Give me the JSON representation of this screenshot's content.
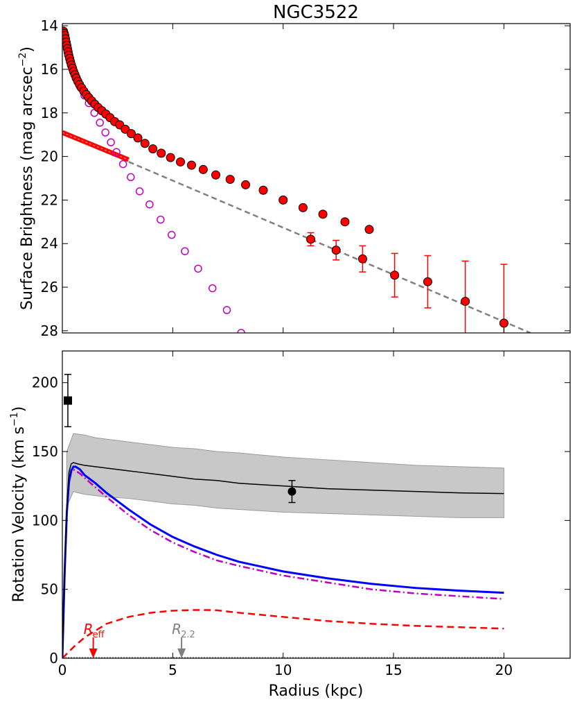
{
  "chart_data": [
    {
      "type": "scatter",
      "title": "NGC3522",
      "ylabel": "Surface Brightness (mag arcsec",
      "ylabel_exp": "−2",
      "ylabel_close": ")",
      "xlim": [
        0,
        23
      ],
      "ylim": [
        28.1,
        13.9
      ],
      "y_inverted": true,
      "yticks": [
        14,
        16,
        18,
        20,
        22,
        24,
        26,
        28
      ],
      "xticks": [
        0,
        5,
        10,
        15,
        20
      ],
      "colors": {
        "data": "#ff0000",
        "bulge": "#bf00bf",
        "fit": "#808080",
        "disk": "#ff0000"
      },
      "series": [
        {
          "name": "observed profile",
          "style": "filled-circle-errorbar",
          "points": [
            [
              0.05,
              14.25
            ],
            [
              0.08,
              14.35
            ],
            [
              0.11,
              14.45
            ],
            [
              0.14,
              14.6
            ],
            [
              0.17,
              14.75
            ],
            [
              0.2,
              14.9
            ],
            [
              0.23,
              15.05
            ],
            [
              0.26,
              15.2
            ],
            [
              0.29,
              15.35
            ],
            [
              0.33,
              15.5
            ],
            [
              0.37,
              15.65
            ],
            [
              0.41,
              15.8
            ],
            [
              0.46,
              15.95
            ],
            [
              0.51,
              16.1
            ],
            [
              0.57,
              16.25
            ],
            [
              0.63,
              16.4
            ],
            [
              0.7,
              16.55
            ],
            [
              0.78,
              16.7
            ],
            [
              0.87,
              16.85
            ],
            [
              0.97,
              17.0
            ],
            [
              1.08,
              17.15
            ],
            [
              1.2,
              17.3
            ],
            [
              1.33,
              17.45
            ],
            [
              1.47,
              17.6
            ],
            [
              1.62,
              17.75
            ],
            [
              1.79,
              17.9
            ],
            [
              1.97,
              18.05
            ],
            [
              2.16,
              18.22
            ],
            [
              2.37,
              18.4
            ],
            [
              2.6,
              18.55
            ],
            [
              2.85,
              18.75
            ],
            [
              3.12,
              18.95
            ],
            [
              3.42,
              19.15
            ],
            [
              3.74,
              19.4
            ],
            [
              4.1,
              19.65
            ],
            [
              4.48,
              19.85
            ],
            [
              4.9,
              20.05
            ],
            [
              5.35,
              20.25
            ],
            [
              5.85,
              20.4
            ],
            [
              6.38,
              20.6
            ],
            [
              6.95,
              20.85
            ],
            [
              7.6,
              21.05
            ],
            [
              8.3,
              21.3
            ],
            [
              9.1,
              21.55
            ],
            [
              10.0,
              22.0
            ],
            [
              10.9,
              22.35
            ],
            [
              11.8,
              22.65
            ],
            [
              12.8,
              23.0
            ],
            [
              13.9,
              23.35
            ]
          ],
          "errors": [],
          "errorbar_points": [
            [
              11.25,
              23.8,
              0.3
            ],
            [
              12.4,
              24.3,
              0.45
            ],
            [
              13.6,
              24.7,
              0.6
            ],
            [
              15.05,
              25.45,
              1.0
            ],
            [
              16.55,
              25.75,
              1.2
            ],
            [
              18.25,
              26.65,
              1.85
            ],
            [
              20.0,
              27.65,
              2.7
            ]
          ]
        },
        {
          "name": "bulge model",
          "style": "open-circle",
          "points": [
            [
              0.1,
              14.4
            ],
            [
              0.2,
              14.9
            ],
            [
              0.3,
              15.35
            ],
            [
              0.45,
              15.9
            ],
            [
              0.6,
              16.35
            ],
            [
              0.8,
              16.8
            ],
            [
              1.0,
              17.2
            ],
            [
              1.2,
              17.55
            ],
            [
              1.45,
              18.0
            ],
            [
              1.7,
              18.45
            ],
            [
              1.95,
              18.9
            ],
            [
              2.2,
              19.35
            ],
            [
              2.45,
              19.8
            ],
            [
              2.75,
              20.35
            ],
            [
              3.1,
              20.95
            ],
            [
              3.5,
              21.6
            ],
            [
              3.95,
              22.2
            ],
            [
              4.45,
              22.9
            ],
            [
              4.95,
              23.6
            ],
            [
              5.55,
              24.35
            ],
            [
              6.15,
              25.15
            ],
            [
              6.8,
              26.05
            ],
            [
              7.45,
              27.05
            ],
            [
              8.1,
              28.1
            ]
          ]
        },
        {
          "name": "exponential disk fit",
          "style": "dashed-line",
          "points": [
            [
              0.0,
              18.95
            ],
            [
              21.2,
              28.1
            ]
          ]
        },
        {
          "name": "disk component",
          "style": "thick-red-band",
          "points": [
            [
              0.0,
              18.9
            ],
            [
              3.0,
              20.15
            ]
          ]
        }
      ]
    },
    {
      "type": "line",
      "xlabel": "Radius (kpc)",
      "ylabel": "Rotation Velocity (km s",
      "ylabel_exp": "−1",
      "ylabel_close": ")",
      "xlim": [
        0,
        23
      ],
      "ylim": [
        0,
        223
      ],
      "xticks": [
        0,
        5,
        10,
        15,
        20
      ],
      "yticks": [
        0,
        50,
        100,
        150,
        200
      ],
      "colors": {
        "total": "#000000",
        "band": "#c8c8c8",
        "blue": "#0000ff",
        "bulge": "#bf00bf",
        "disk": "#ff0000",
        "r22": "#808080"
      },
      "band": {
        "x": [
          0.2,
          0.5,
          1,
          1.5,
          2,
          3,
          4,
          5,
          6,
          7,
          8,
          10,
          12,
          14,
          16,
          18,
          20
        ],
        "upper": [
          150,
          163,
          162,
          160,
          159,
          157,
          155,
          153,
          152,
          150,
          149,
          146,
          144,
          142,
          140,
          139,
          138
        ],
        "lower": [
          110,
          121,
          119,
          118,
          117,
          116,
          114,
          112,
          111,
          109,
          108,
          106,
          105,
          104,
          103,
          102,
          102
        ]
      },
      "series": [
        {
          "name": "total model",
          "x": [
            0,
            0.1,
            0.2,
            0.3,
            0.4,
            0.5,
            0.7,
            1.0,
            1.5,
            2,
            2.5,
            3,
            3.5,
            4,
            5,
            6,
            7,
            8,
            9,
            10,
            12,
            14,
            16,
            18,
            20
          ],
          "y": [
            0,
            60,
            110,
            135,
            141,
            142,
            141,
            140,
            139,
            138,
            137,
            136,
            135,
            134,
            132,
            130,
            129,
            127,
            126,
            125,
            123,
            122,
            121,
            120,
            119.5
          ]
        },
        {
          "name": "blue model",
          "x": [
            0,
            0.1,
            0.2,
            0.3,
            0.4,
            0.5,
            0.6,
            0.8,
            1.0,
            1.5,
            2,
            3,
            4,
            5,
            6,
            7,
            8,
            10,
            12,
            14,
            16,
            18,
            20
          ],
          "y": [
            0,
            60,
            105,
            128,
            136,
            139,
            139,
            137,
            133,
            127,
            120,
            108,
            97,
            88,
            81,
            75,
            70,
            63,
            58,
            54,
            51,
            49,
            47.5
          ]
        },
        {
          "name": "bulge component",
          "x": [
            0,
            0.1,
            0.2,
            0.3,
            0.4,
            0.5,
            0.6,
            0.8,
            1.0,
            1.5,
            2,
            3,
            4,
            5,
            6,
            7,
            8,
            10,
            12,
            14,
            16,
            18,
            20
          ],
          "y": [
            0,
            60,
            104,
            127,
            135,
            137,
            136,
            134,
            131,
            124,
            117,
            104,
            93,
            84,
            77,
            71,
            67,
            60,
            55,
            50,
            47,
            45,
            43
          ]
        },
        {
          "name": "disk component",
          "x": [
            0,
            0.5,
            1,
            1.5,
            2,
            3,
            4,
            5,
            6,
            6.5,
            7,
            8,
            10,
            12,
            14,
            16,
            18,
            20
          ],
          "y": [
            0,
            8,
            15,
            20,
            25,
            30,
            33,
            34.5,
            35,
            35,
            34.8,
            33,
            30,
            27,
            25,
            23.5,
            22.5,
            21.5
          ]
        }
      ],
      "points": [
        {
          "name": "central dispersion",
          "marker": "square",
          "x": 0.25,
          "y": 187,
          "err": 19
        },
        {
          "name": "HI width",
          "marker": "circle",
          "x": 10.4,
          "y": 121,
          "err": 8
        }
      ],
      "annotations": [
        {
          "name": "R_eff",
          "label": "R",
          "sub": "eff",
          "x": 1.4,
          "color": "#ff0000"
        },
        {
          "name": "R_2.2",
          "label": "R",
          "sub": "2.2",
          "x": 5.4,
          "color": "#808080"
        }
      ]
    }
  ]
}
